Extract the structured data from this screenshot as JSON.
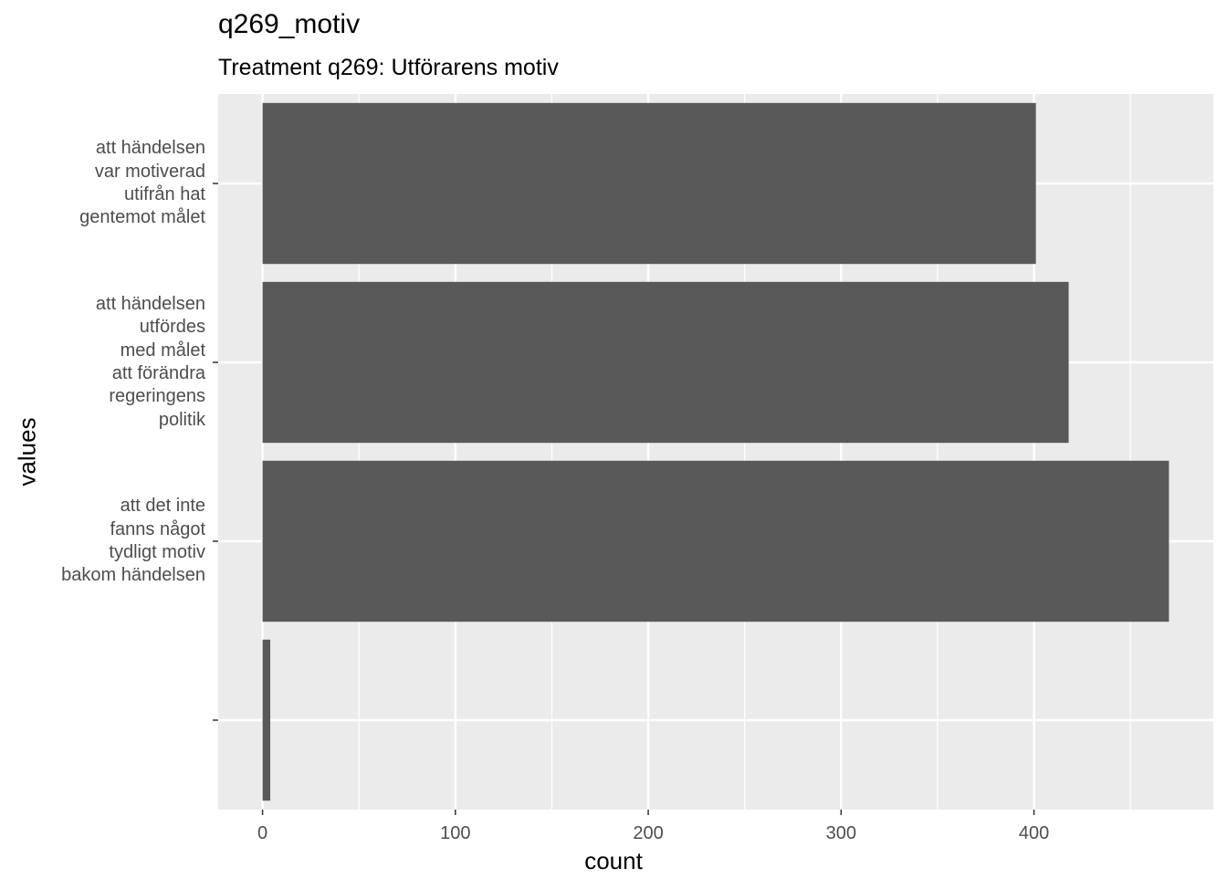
{
  "chart_data": {
    "type": "bar",
    "orientation": "horizontal",
    "title": "q269_motiv",
    "subtitle": "Treatment q269: Utförarens motiv",
    "xlabel": "count",
    "ylabel": "values",
    "categories": [
      "att händelsen var motiverad utifrån hat gentemot målet",
      "att händelsen utfördes med målet att förändra regeringens politik",
      "att det inte fanns något tydligt motiv bakom händelsen",
      ""
    ],
    "category_lines": [
      [
        "att händelsen",
        "var motiverad",
        "utifrån hat",
        "gentemot målet"
      ],
      [
        "att händelsen",
        "utfördes",
        "med målet",
        "att förändra",
        "regeringens",
        "politik"
      ],
      [
        "att det inte",
        "fanns något",
        "tydligt motiv",
        "bakom händelsen"
      ],
      []
    ],
    "values": [
      401,
      418,
      470,
      4
    ],
    "xlim": [
      -23,
      493
    ],
    "xticks": [
      0,
      100,
      200,
      300,
      400
    ],
    "grid": true,
    "bar_color": "#595959",
    "panel_color": "#ebebeb"
  }
}
